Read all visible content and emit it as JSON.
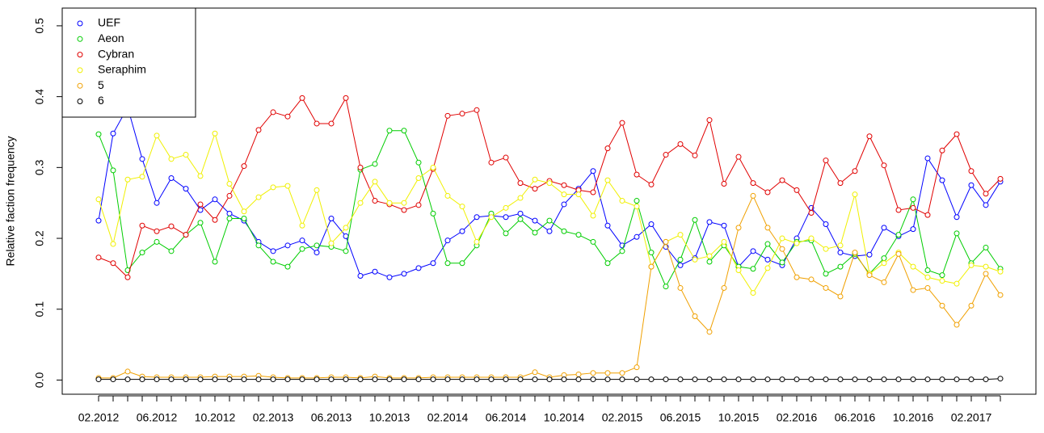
{
  "chart_data": {
    "type": "line",
    "y_label": "Relative faction frequency",
    "categories": [
      "02.2012",
      null,
      null,
      null,
      "06.2012",
      null,
      null,
      null,
      "10.2012",
      null,
      null,
      null,
      "02.2013",
      null,
      null,
      null,
      "06.2013",
      null,
      null,
      null,
      "10.2013",
      null,
      null,
      null,
      "02.2014",
      null,
      null,
      null,
      "06.2014",
      null,
      null,
      null,
      "10.2014",
      null,
      null,
      null,
      "02.2015",
      null,
      null,
      null,
      "06.2015",
      null,
      null,
      null,
      "10.2015",
      null,
      null,
      null,
      "02.2016",
      null,
      null,
      null,
      "06.2016",
      null,
      null,
      null,
      "10.2016",
      null,
      null,
      null,
      "02.2017",
      null,
      null
    ],
    "ylim": [
      -0.02,
      0.525
    ],
    "yticks": [
      {
        "value": 0,
        "label": "0.0"
      },
      0.1,
      0.2,
      0.3,
      0.4,
      0.5
    ],
    "legend": "top-left",
    "series": [
      {
        "name": "UEF",
        "color": "#0000ff",
        "values": [
          0.225,
          0.348,
          0.385,
          0.312,
          0.25,
          0.285,
          0.27,
          0.24,
          0.255,
          0.235,
          0.225,
          0.195,
          0.182,
          0.19,
          0.197,
          0.18,
          0.228,
          0.203,
          0.147,
          0.153,
          0.145,
          0.15,
          0.158,
          0.165,
          0.197,
          0.21,
          0.23,
          0.232,
          0.23,
          0.235,
          0.225,
          0.21,
          0.248,
          0.27,
          0.295,
          0.218,
          0.19,
          0.202,
          0.22,
          0.188,
          0.162,
          0.172,
          0.223,
          0.218,
          0.16,
          0.182,
          0.17,
          0.162,
          0.2,
          0.243,
          0.22,
          0.18,
          0.175,
          0.177,
          0.215,
          0.203,
          0.213,
          0.313,
          0.282,
          0.23,
          0.275,
          0.247,
          0.28
        ]
      },
      {
        "name": "Aeon",
        "color": "#00cd00",
        "values": [
          0.347,
          0.296,
          0.155,
          0.18,
          0.195,
          0.182,
          0.205,
          0.222,
          0.167,
          0.228,
          0.228,
          0.19,
          0.167,
          0.16,
          0.185,
          0.19,
          0.188,
          0.182,
          0.297,
          0.305,
          0.352,
          0.352,
          0.307,
          0.235,
          0.165,
          0.165,
          0.19,
          0.235,
          0.207,
          0.227,
          0.208,
          0.225,
          0.21,
          0.205,
          0.195,
          0.165,
          0.182,
          0.253,
          0.18,
          0.132,
          0.17,
          0.226,
          0.167,
          0.19,
          0.16,
          0.157,
          0.192,
          0.166,
          0.195,
          0.197,
          0.15,
          0.16,
          0.178,
          0.15,
          0.172,
          0.205,
          0.255,
          0.155,
          0.148,
          0.207,
          0.165,
          0.187,
          0.157
        ]
      },
      {
        "name": "Cybran",
        "color": "#e00000",
        "values": [
          0.173,
          0.165,
          0.145,
          0.218,
          0.21,
          0.217,
          0.205,
          0.248,
          0.226,
          0.26,
          0.302,
          0.353,
          0.378,
          0.372,
          0.398,
          0.362,
          0.362,
          0.398,
          0.3,
          0.253,
          0.248,
          0.24,
          0.247,
          0.298,
          0.373,
          0.376,
          0.381,
          0.307,
          0.314,
          0.278,
          0.27,
          0.281,
          0.275,
          0.268,
          0.265,
          0.327,
          0.363,
          0.29,
          0.276,
          0.318,
          0.333,
          0.317,
          0.367,
          0.277,
          0.315,
          0.278,
          0.265,
          0.282,
          0.268,
          0.236,
          0.31,
          0.278,
          0.295,
          0.344,
          0.303,
          0.24,
          0.243,
          0.233,
          0.324,
          0.347,
          0.295,
          0.263,
          0.284
        ]
      },
      {
        "name": "Seraphim",
        "color": "#f0f000",
        "values": [
          0.255,
          0.192,
          0.283,
          0.287,
          0.345,
          0.312,
          0.318,
          0.288,
          0.348,
          0.277,
          0.238,
          0.258,
          0.272,
          0.274,
          0.218,
          0.268,
          0.193,
          0.215,
          0.25,
          0.28,
          0.25,
          0.25,
          0.285,
          0.3,
          0.26,
          0.245,
          0.195,
          0.23,
          0.243,
          0.257,
          0.283,
          0.278,
          0.262,
          0.262,
          0.232,
          0.282,
          0.253,
          0.245,
          0.16,
          0.195,
          0.205,
          0.17,
          0.175,
          0.195,
          0.155,
          0.123,
          0.158,
          0.2,
          0.193,
          0.2,
          0.185,
          0.19,
          0.262,
          0.15,
          0.165,
          0.18,
          0.16,
          0.145,
          0.14,
          0.136,
          0.162,
          0.16,
          0.153
        ]
      },
      {
        "name": "5",
        "color": "#f0a000",
        "values": [
          0.003,
          0.003,
          0.012,
          0.005,
          0.004,
          0.004,
          0.004,
          0.004,
          0.005,
          0.005,
          0.005,
          0.006,
          0.004,
          0.003,
          0.003,
          0.003,
          0.004,
          0.004,
          0.003,
          0.005,
          0.003,
          0.003,
          0.003,
          0.004,
          0.004,
          0.004,
          0.004,
          0.004,
          0.004,
          0.004,
          0.011,
          0.004,
          0.007,
          0.008,
          0.01,
          0.01,
          0.01,
          0.018,
          0.16,
          0.195,
          0.13,
          0.09,
          0.068,
          0.13,
          0.215,
          0.26,
          0.215,
          0.185,
          0.145,
          0.142,
          0.13,
          0.118,
          0.18,
          0.148,
          0.138,
          0.178,
          0.127,
          0.13,
          0.105,
          0.078,
          0.105,
          0.15,
          0.12
        ]
      },
      {
        "name": "6",
        "color": "#000000",
        "values": [
          0.001,
          0.001,
          0.001,
          0.001,
          0.001,
          0.001,
          0.001,
          0.001,
          0.001,
          0.001,
          0.001,
          0.001,
          0.001,
          0.001,
          0.001,
          0.001,
          0.001,
          0.001,
          0.001,
          0.001,
          0.001,
          0.001,
          0.001,
          0.001,
          0.001,
          0.001,
          0.001,
          0.001,
          0.001,
          0.001,
          0.001,
          0.001,
          0.001,
          0.001,
          0.001,
          0.001,
          0.001,
          0.001,
          0.001,
          0.001,
          0.001,
          0.001,
          0.001,
          0.001,
          0.001,
          0.001,
          0.001,
          0.001,
          0.001,
          0.001,
          0.001,
          0.001,
          0.001,
          0.001,
          0.001,
          0.001,
          0.001,
          0.001,
          0.001,
          0.001,
          0.001,
          0.001,
          0.002
        ]
      }
    ]
  }
}
